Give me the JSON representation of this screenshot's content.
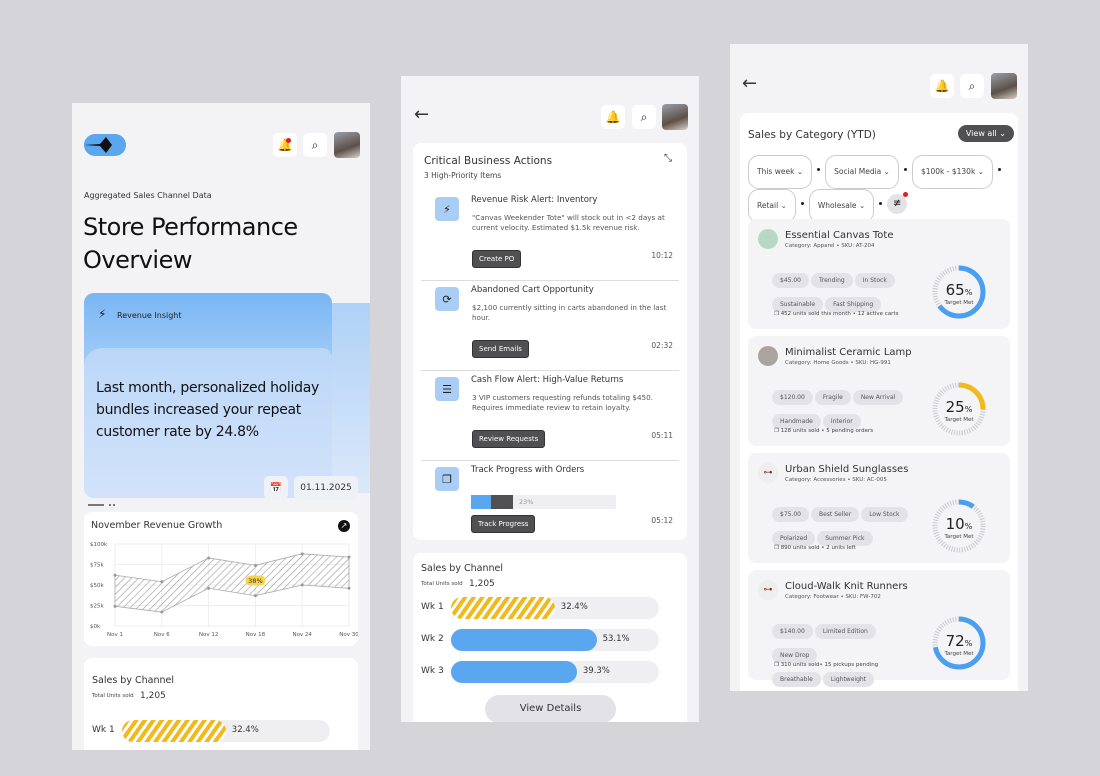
{
  "left": {
    "subtitle": "Aggregated Sales Channel Data",
    "title_line1": "Store Performance",
    "title_line2": "Overview",
    "insight": {
      "label": "Revenue Insight",
      "text": "Last month, personalized holiday bundles increased your repeat customer rate by 24.8%",
      "date": "01.11.2025"
    },
    "chart": {
      "title": "November Revenue Growth",
      "badge": "38%"
    },
    "sales": {
      "title": "Sales by Channel",
      "total_label": "Total Units sold",
      "total": "1,205",
      "rows": [
        {
          "label": "Wk 1",
          "value": 32.4,
          "text": "32.4%"
        }
      ]
    }
  },
  "chart_data": {
    "type": "area",
    "title": "November Revenue Growth",
    "categories": [
      "Nov 1",
      "Nov 6",
      "Nov 12",
      "Nov 18",
      "Nov 24",
      "Nov 30"
    ],
    "yticks": [
      "$0k",
      "$25k",
      "$50k",
      "$75k",
      "$100k"
    ],
    "ylim": [
      0,
      100000
    ],
    "series": [
      {
        "values": [
          62000,
          54000,
          83000,
          74000,
          88000,
          84000
        ]
      },
      {
        "values": [
          24000,
          17000,
          46000,
          37000,
          50000,
          46000
        ]
      }
    ],
    "annotation": "38%",
    "grid": true
  },
  "middle": {
    "card_title": "Critical Business Actions",
    "card_subtitle": "3 High-Priority Items",
    "actions": [
      {
        "title": "Revenue Risk Alert: Inventory",
        "desc": "\"Canvas Weekender Tote\" will stock out in <2 days at current velocity. Estimated $1.5k revenue risk.",
        "button": "Create PO",
        "time": "10:12",
        "icon": "lightning-icon"
      },
      {
        "title": "Abandoned Cart Opportunity",
        "desc": "$2,100 currently sitting in carts abandoned in the last hour.",
        "button": "Send Emails",
        "time": "02:32",
        "icon": "refresh-icon"
      },
      {
        "title": "Cash Flow Alert: High-Value Returns",
        "desc": "3 VIP customers requesting refunds totaling $450. Requires immediate review to retain loyalty.",
        "button": "Review Requests",
        "time": "05:11",
        "icon": "database-icon"
      },
      {
        "title": "Track Progress with Orders",
        "progress": 23,
        "progress_text": "23%",
        "button": "Track Progress",
        "time": "05:12",
        "icon": "copy-icon"
      }
    ],
    "sales": {
      "title": "Sales by Channel",
      "total_label": "Total Units sold",
      "total": "1,205",
      "rows": [
        {
          "label": "Wk 1",
          "value": 32.4,
          "text": "32.4%"
        },
        {
          "label": "Wk 2",
          "value": 53.1,
          "text": "53.1%"
        },
        {
          "label": "Wk 3",
          "value": 39.3,
          "text": "39.3%"
        }
      ],
      "button": "View Details"
    }
  },
  "right": {
    "title": "Sales by Category (YTD)",
    "view_all": "View all",
    "filters": [
      "This week",
      "Social Media",
      "$100k - $130k",
      "Retail",
      "Wholesale"
    ],
    "products": [
      {
        "name": "Essential Canvas Tote",
        "meta": "Category: Apparel • SKU: AT-204",
        "tags": [
          "$45.00",
          "Trending",
          "In Stock",
          "Sustainable",
          "Fast Shipping"
        ],
        "foot": "452 units sold this month • 12 active carts",
        "percent": 65,
        "color": "#4a9ff0",
        "gauge_label": "Target Met"
      },
      {
        "name": "Minimalist Ceramic Lamp",
        "meta": "Category: Home Goods • SKU: HG-991",
        "tags": [
          "$120.00",
          "Fragile",
          "New Arrival",
          "Handmade",
          "Interior"
        ],
        "foot": "128 units sold • 5 pending orders",
        "percent": 25,
        "color": "#f2b91c",
        "gauge_label": "Target Met"
      },
      {
        "name": "Urban Shield Sunglasses",
        "meta": "Category: Accessories • SKU: AC-005",
        "tags": [
          "$75.00",
          "Best Seller",
          "Low Stock",
          "Polarized",
          "Summer Pick"
        ],
        "foot": "890 units sold • 2 units left",
        "percent": 10,
        "color": "#4a9ff0",
        "gauge_label": "Target Met"
      },
      {
        "name": "Cloud-Walk Knit Runners",
        "meta": "Category: Footwear • SKU: FW-702",
        "tags": [
          "$140.00",
          "Limited Edition",
          "New Drop",
          "Breathable",
          "Lightweight"
        ],
        "foot": "310 units sold• 15 pickups pending",
        "percent": 72,
        "color": "#4a9ff0",
        "gauge_label": "Target Met"
      }
    ]
  },
  "colors": {
    "accent": "#5aa7f0",
    "highlight": "#f2b91c",
    "alert": "#e01e1e",
    "dark_button": "#505052"
  }
}
